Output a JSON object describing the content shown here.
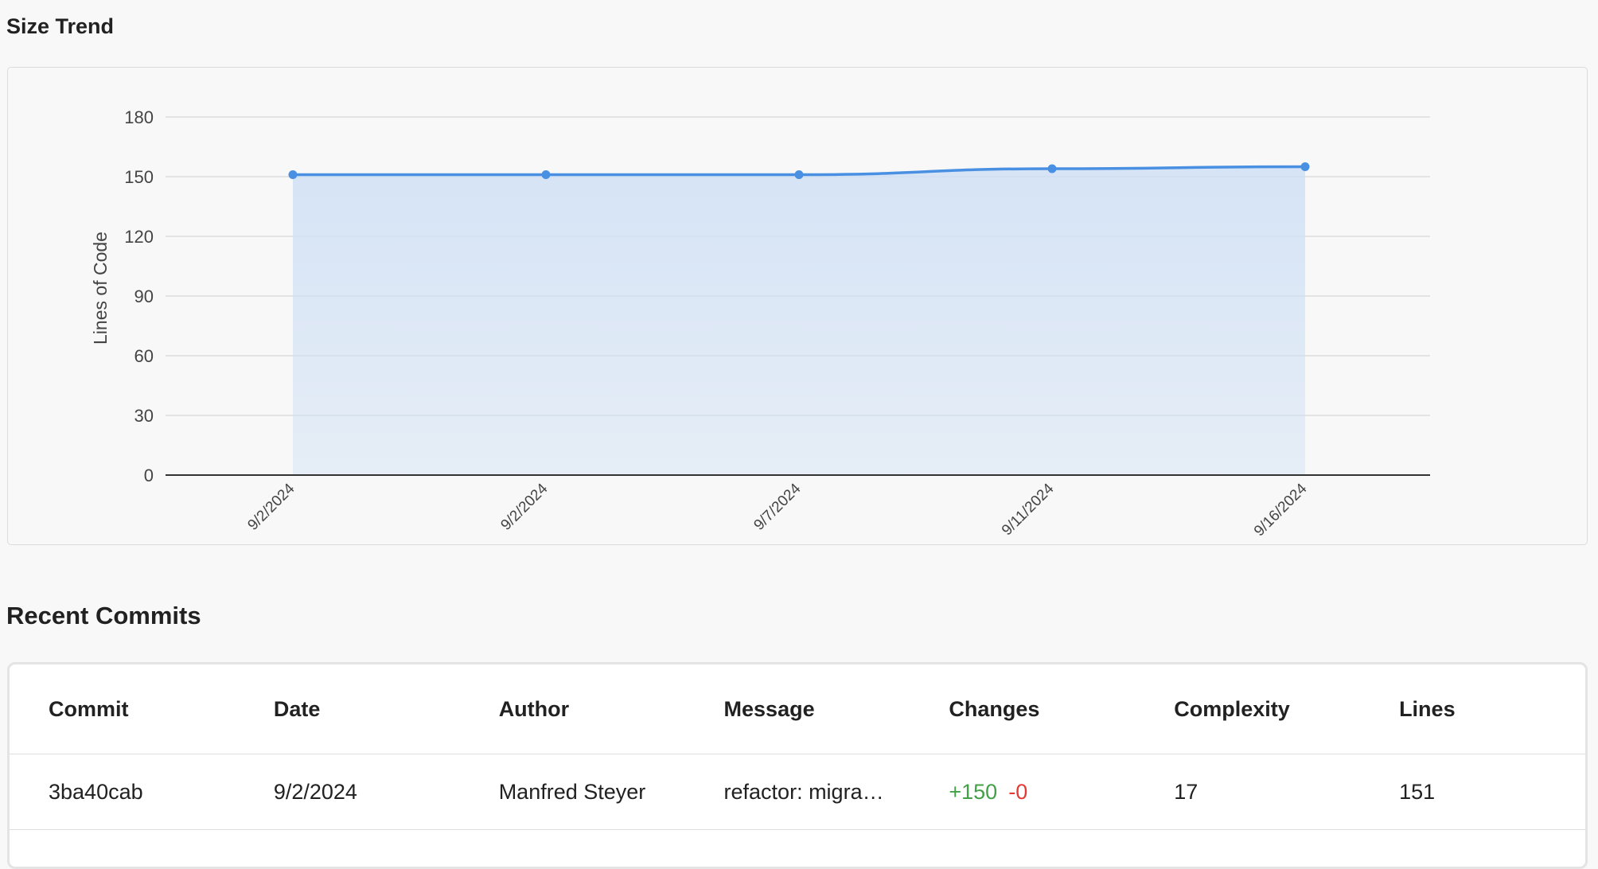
{
  "size_trend": {
    "title": "Size Trend"
  },
  "chart_data": {
    "type": "area",
    "ylabel": "Lines of Code",
    "xlabel": "",
    "ylim": [
      0,
      180
    ],
    "y_ticks": [
      0,
      30,
      60,
      90,
      120,
      150,
      180
    ],
    "categories": [
      "9/2/2024",
      "9/2/2024",
      "9/7/2024",
      "9/11/2024",
      "9/16/2024"
    ],
    "values": [
      151,
      151,
      151,
      154,
      155
    ],
    "grid": true,
    "line_color": "#4a90e2",
    "fill_color": "#cfe0f5"
  },
  "recent_commits": {
    "title": "Recent Commits",
    "columns": [
      "Commit",
      "Date",
      "Author",
      "Message",
      "Changes",
      "Complexity",
      "Lines"
    ],
    "rows": [
      {
        "commit": "3ba40cab",
        "date": "9/2/2024",
        "author": "Manfred Steyer",
        "message": "refactor: migra…",
        "additions": "+150",
        "deletions": "-0",
        "complexity": "17",
        "lines": "151"
      }
    ]
  },
  "colors": {
    "additions": "#43a047",
    "deletions": "#e53935"
  }
}
